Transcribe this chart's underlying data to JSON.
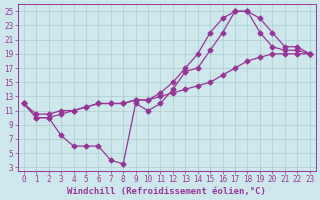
{
  "xlabel": "Windchill (Refroidissement éolien,°C)",
  "bg_color": "#cce8ec",
  "line_color": "#993399",
  "grid_color": "#aacccc",
  "xlim": [
    -0.5,
    23.5
  ],
  "ylim": [
    2.5,
    26
  ],
  "xticks": [
    0,
    1,
    2,
    3,
    4,
    5,
    6,
    7,
    8,
    9,
    10,
    11,
    12,
    13,
    14,
    15,
    16,
    17,
    18,
    19,
    20,
    21,
    22,
    23
  ],
  "yticks": [
    3,
    5,
    7,
    9,
    11,
    13,
    15,
    17,
    19,
    21,
    23,
    25
  ],
  "line_straight_x": [
    0,
    1,
    2,
    3,
    4,
    5,
    6,
    7,
    8,
    9,
    10,
    11,
    12,
    13,
    14,
    15,
    16,
    17,
    18,
    19,
    20,
    21,
    22,
    23
  ],
  "line_straight_y": [
    12,
    10.5,
    10.5,
    11,
    11,
    11.5,
    12,
    12,
    12,
    12.5,
    12.5,
    13,
    13.5,
    14,
    14.5,
    15,
    16,
    17,
    18,
    18.5,
    19,
    19,
    19,
    19
  ],
  "line_curve_x": [
    0,
    1,
    2,
    3,
    4,
    5,
    6,
    7,
    8,
    9,
    10,
    11,
    12,
    13,
    14,
    15,
    16,
    17,
    18,
    19,
    20,
    21,
    22,
    23
  ],
  "line_curve_y": [
    12,
    10,
    10,
    10.5,
    11,
    11.5,
    12,
    12,
    12,
    12.5,
    12.5,
    13.5,
    15,
    17,
    19,
    22,
    24,
    25,
    25,
    24,
    22,
    20,
    20,
    19
  ],
  "line_jagged_x": [
    0,
    1,
    2,
    3,
    4,
    5,
    6,
    7,
    8,
    9,
    10,
    11,
    12,
    13,
    14,
    15,
    16,
    17,
    18,
    19,
    20,
    21,
    22,
    23
  ],
  "line_jagged_y": [
    12,
    10,
    10,
    7.5,
    6,
    6,
    6,
    4,
    3.5,
    12,
    11,
    12,
    14,
    16.5,
    17,
    19.5,
    22,
    25,
    25,
    22,
    20,
    19.5,
    19.5,
    19
  ],
  "marker_size": 2.5,
  "linewidth": 0.9,
  "font_family": "monospace",
  "xlabel_fontsize": 6.5,
  "tick_fontsize": 5.5,
  "tick_color": "#993399",
  "label_color": "#993399"
}
